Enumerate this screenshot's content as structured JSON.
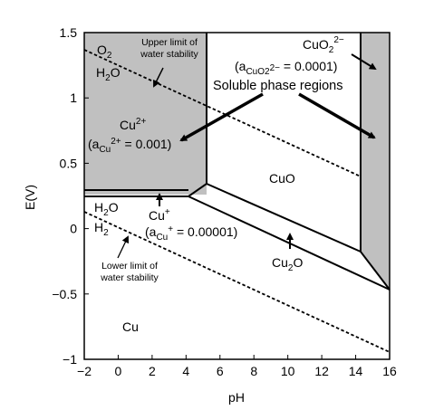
{
  "chart_data": {
    "type": "line",
    "title": "",
    "xlabel": "pH",
    "ylabel": "E(V)",
    "xlim": [
      -2,
      16
    ],
    "ylim": [
      -1,
      1.5
    ],
    "xticks": [
      -2,
      0,
      2,
      4,
      6,
      8,
      10,
      12,
      14,
      16
    ],
    "yticks": [
      -1,
      -0.5,
      0,
      0.5,
      1,
      1.5
    ],
    "grid": false,
    "legend": "none",
    "colors": {
      "soluble_region": "#c0c0c0",
      "line": "#000000"
    },
    "series": [
      {
        "name": "Upper limit of water stability",
        "style": "dashed",
        "points": [
          [
            -2,
            1.35
          ],
          [
            16,
            0.29
          ]
        ]
      },
      {
        "name": "Lower limit of water stability",
        "style": "dashed",
        "points": [
          [
            -2,
            0.12
          ],
          [
            16,
            -0.95
          ]
        ]
      },
      {
        "style": "solid",
        "points": [
          [
            -2,
            0.285
          ],
          [
            4.2,
            0.285
          ]
        ]
      },
      {
        "style": "solid",
        "points": [
          [
            -2,
            0.24
          ],
          [
            4.2,
            0.24
          ],
          [
            5.3,
            0.33
          ],
          [
            14.3,
            -0.22
          ],
          [
            16,
            -0.49
          ]
        ]
      },
      {
        "style": "solid",
        "points": [
          [
            5.3,
            0.33
          ],
          [
            5.3,
            1.5
          ]
        ]
      },
      {
        "style": "solid",
        "points": [
          [
            14.3,
            -0.22
          ],
          [
            14.3,
            1.5
          ]
        ]
      },
      {
        "style": "solid",
        "points": [
          [
            4.2,
            0.24
          ],
          [
            16,
            -0.49
          ]
        ]
      }
    ],
    "shaded_regions": [
      {
        "name": "Cu2+ region",
        "points": [
          [
            -2,
            0.285
          ],
          [
            5.3,
            0.285
          ],
          [
            5.3,
            1.5
          ],
          [
            -2,
            1.5
          ]
        ]
      },
      {
        "name": "CuO2 2- region",
        "points": [
          [
            14.3,
            -0.22
          ],
          [
            16,
            -0.49
          ],
          [
            16,
            1.5
          ],
          [
            14.3,
            1.5
          ]
        ]
      }
    ],
    "annotations": {
      "o2": "O",
      "o2_sub": "2",
      "h2o_top": "H",
      "h2o_top_sub": "2",
      "h2o_top_end": "O",
      "upper_limit_1": "Upper limit of",
      "upper_limit_2": "water stability",
      "cuo2_main": "CuO",
      "cuo2_sub": "2",
      "cuo2_sup": "2−",
      "cuo2_act_open": "(a",
      "cuo2_act_sub": "CuO2",
      "cuo2_act_sup": "2−",
      "cuo2_act_val": " = 0.0001)",
      "soluble": "Soluble phase regions",
      "cu2_main": "Cu",
      "cu2_sup": "2+",
      "cu2_act_open": "(a",
      "cu2_act_sub": "Cu",
      "cu2_act_sup": "2+",
      "cu2_act_val": " = 0.001)",
      "cuo": "CuO",
      "h2o_mid": "H",
      "h2o_mid_sub": "2",
      "h2o_mid_end": "O",
      "h2_mid": "H",
      "h2_mid_sub": "2",
      "cuplus_main": "Cu",
      "cuplus_sup": "+",
      "cuplus_act_open": "(a",
      "cuplus_act_sub": "Cu",
      "cuplus_act_sup": "+",
      "cuplus_act_val": " = 0.00001)",
      "cu2o_main": "Cu",
      "cu2o_sub": "2",
      "cu2o_end": "O",
      "lower_limit_1": "Lower limit of",
      "lower_limit_2": "water stability",
      "cu": "Cu"
    }
  }
}
